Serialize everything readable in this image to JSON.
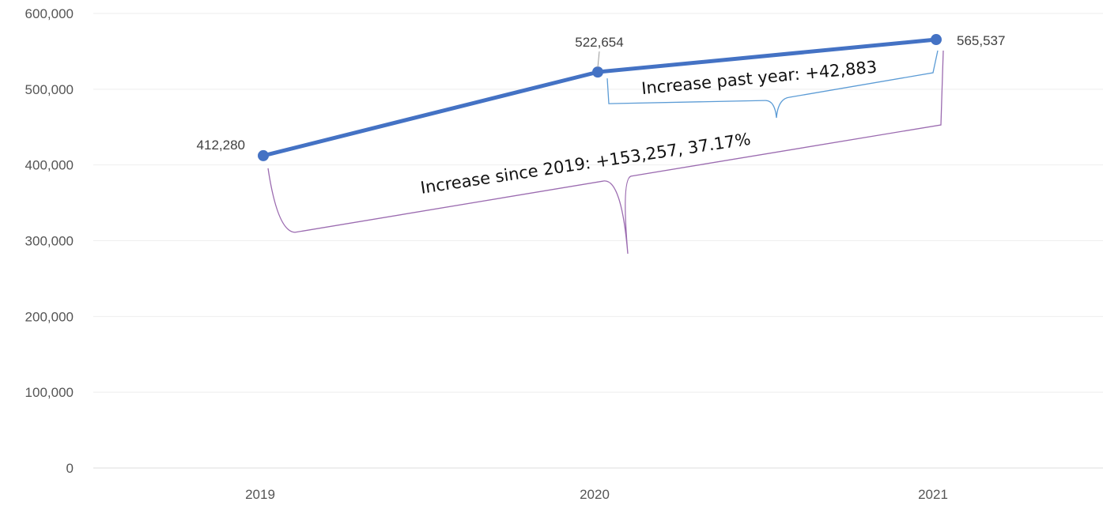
{
  "chart_data": {
    "type": "line",
    "categories": [
      "2019",
      "2020",
      "2021"
    ],
    "series": [
      {
        "values": [
          412280,
          522654,
          565537
        ],
        "data_labels": [
          "412,280",
          "522,654",
          "565,537"
        ],
        "color": "#4472c4"
      }
    ],
    "ylim": [
      0,
      600000
    ],
    "yticks": [
      0,
      100000,
      200000,
      300000,
      400000,
      500000,
      600000
    ],
    "ytick_labels": [
      "0",
      "100,000",
      "200,000",
      "300,000",
      "400,000",
      "500,000",
      "600,000"
    ],
    "grid": true,
    "legend": "none",
    "title": "",
    "xlabel": "",
    "ylabel": "",
    "annotations": [
      {
        "text": "Increase past year: +42,883",
        "from_category": "2020",
        "to_category": "2021",
        "color": "#5b9bd5"
      },
      {
        "text": "Increase since 2019: +153,257, 37.17%",
        "from_category": "2019",
        "to_category": "2021",
        "color": "#9b6bb0"
      }
    ]
  }
}
